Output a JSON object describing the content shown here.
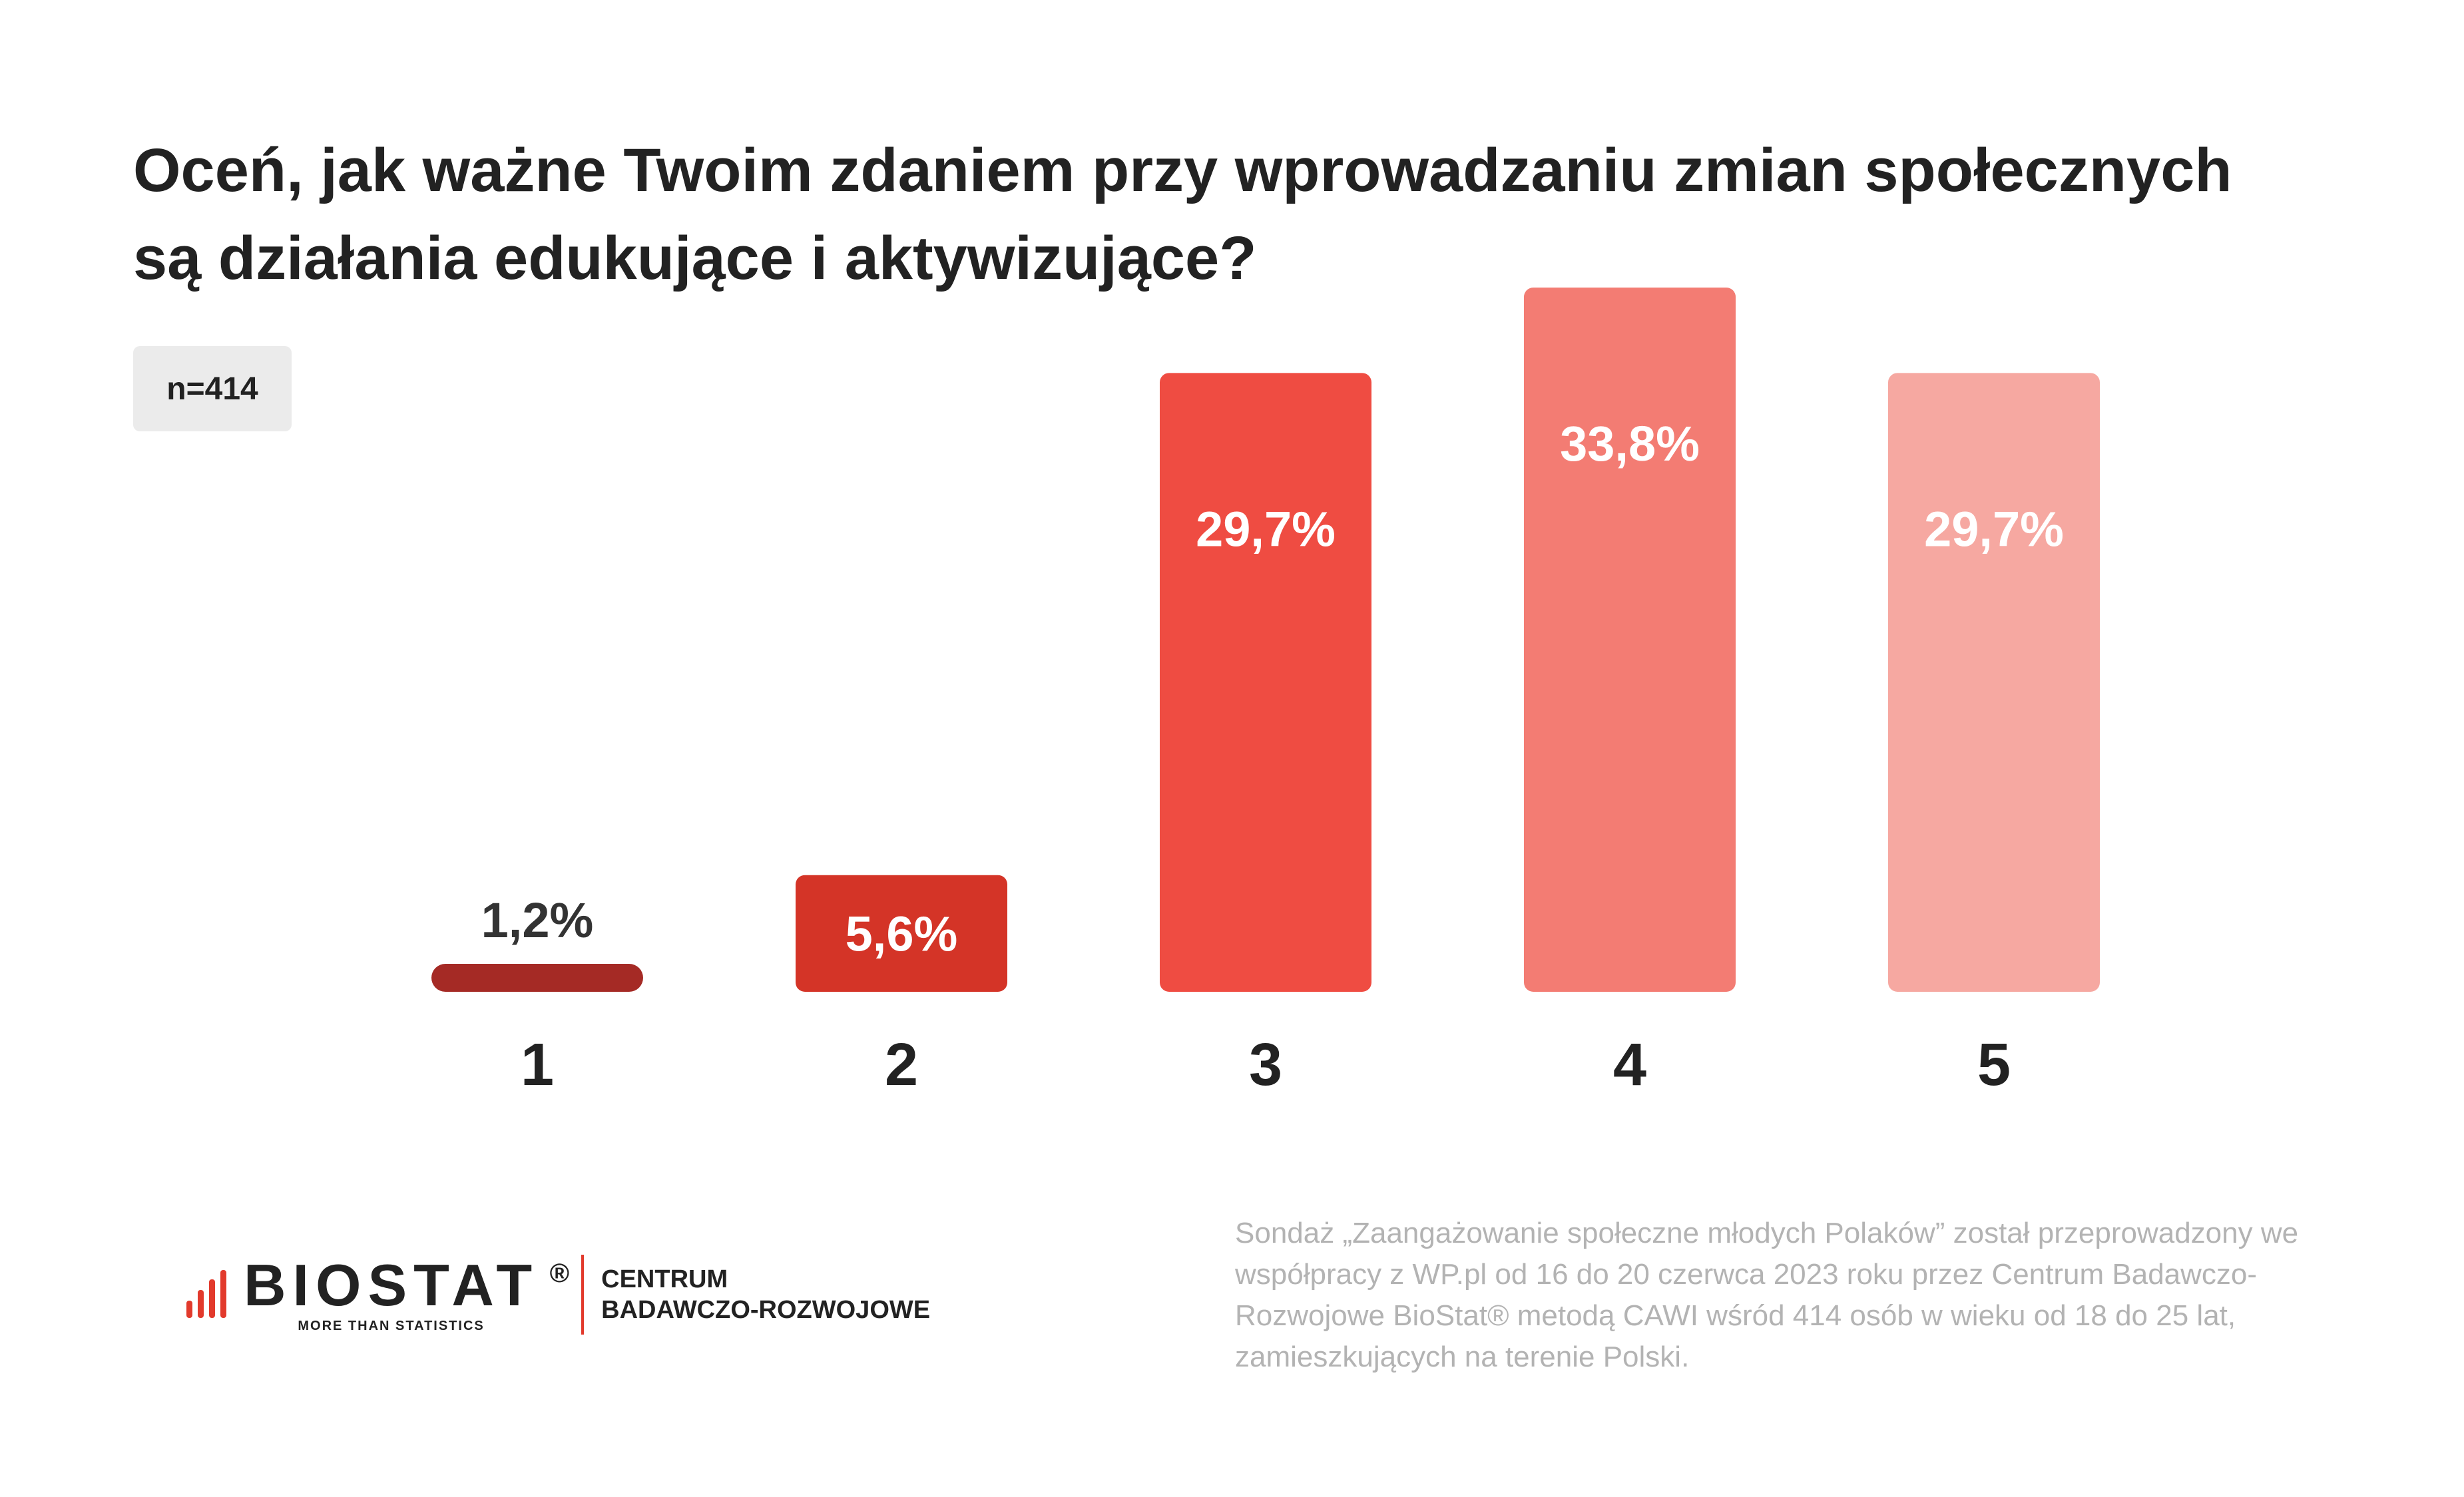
{
  "title": "Oceń, jak ważne Twoim zdaniem przy wprowadzaniu zmian społecznych są działania edukujące i aktywizujące?",
  "sample": "n=414",
  "chart_data": {
    "type": "bar",
    "categories": [
      "1",
      "2",
      "3",
      "4",
      "5"
    ],
    "values": [
      1.2,
      5.6,
      29.7,
      33.8,
      29.7
    ],
    "value_labels": [
      "1,2%",
      "5,6%",
      "29,7%",
      "33,8%",
      "29,7%"
    ],
    "colors": [
      "#a52a25",
      "#d43427",
      "#ef4c42",
      "#f37c73",
      "#f6a8a1"
    ],
    "label_colors": [
      "#333333",
      "#ffffff",
      "#ffffff",
      "#ffffff",
      "#ffffff"
    ],
    "ylim": [
      0,
      33.8
    ],
    "grid": false
  },
  "logo": {
    "name": "BIOSTAT",
    "registered": "®",
    "tagline": "MORE THAN STATISTICS",
    "department_line1": "CENTRUM",
    "department_line2": "BADAWCZO-ROZWOJOWE",
    "accent": "#e23a2c"
  },
  "footnote": "Sondaż „Zaangażowanie społeczne młodych Polaków” został przeprowadzony we współpracy z WP.pl od 16 do 20 czerwca 2023 roku przez Centrum Badawczo-Rozwojowe BioStat® metodą CAWI wśród 414 osób w wieku od 18 do 25 lat, zamieszkujących na terenie Polski."
}
